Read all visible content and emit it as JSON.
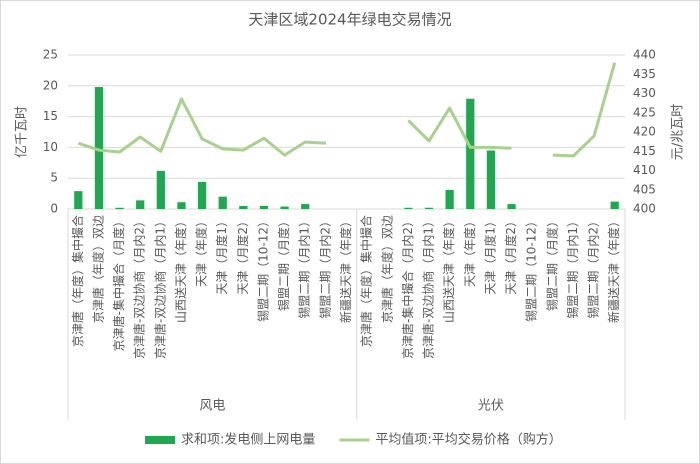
{
  "chart_data": {
    "type": "bar-line",
    "title": "天津区域2024年绿电交易情况",
    "y_label": "亿千瓦时",
    "y2_label": "元/兆瓦时",
    "groups": [
      {
        "name": "风电",
        "categories": [
          "京津唐（年度）集中撮合",
          "京津唐（年度）双边",
          "京津唐-集中撮合（月度）",
          "京津唐-双边协商（月内2）",
          "京津唐-双边协商（月内1）",
          "山西送天津（年度）",
          "天津（年度）",
          "天津（月度1）",
          "天津（月度2）",
          "锡盟二期（10-12）",
          "锡盟二期（月度）",
          "锡盟二期（月内1）",
          "锡盟二期（月内2）",
          "新疆送天津（年度）"
        ]
      },
      {
        "name": "光伏",
        "categories": [
          "京津唐（年度）集中撮合",
          "京津唐（年度）双边",
          "京津唐-集中撮合（月内2）",
          "京津唐-双边协商（月内1）",
          "山西送天津（年度）",
          "天津（年度）",
          "天津（月度1）",
          "天津（月度2）",
          "锡盟二期（10-12）",
          "锡盟二期（月度）",
          "锡盟二期（月内1）",
          "锡盟二期（月内2）",
          "新疆送天津（年度）"
        ]
      }
    ],
    "series": [
      {
        "name": "求和项:发电侧上网电量",
        "type": "bar",
        "color": "#1fa84f",
        "values": [
          2.9,
          19.8,
          0.2,
          1.4,
          6.2,
          1.1,
          4.4,
          2.0,
          0.5,
          0.5,
          0.4,
          0.8,
          null,
          null,
          null,
          null,
          0.2,
          0.2,
          3.1,
          17.9,
          9.5,
          0.8,
          null,
          null,
          null,
          null,
          1.2
        ]
      },
      {
        "name": "平均值项:平均交易价格（购方）",
        "type": "line",
        "axis": "y2",
        "color": "#a9d18e",
        "values": [
          417.1,
          415.3,
          414.8,
          418.7,
          415,
          428.6,
          418.2,
          415.6,
          415.3,
          418.4,
          414,
          417.4,
          417.1,
          null,
          null,
          null,
          423,
          417.7,
          426.2,
          416,
          416,
          415.8,
          null,
          414,
          413.8,
          419,
          438
        ]
      }
    ],
    "ylim": [
      0,
      25
    ],
    "yticks": [
      0,
      5,
      10,
      15,
      20,
      25
    ],
    "y2lim": [
      400,
      440
    ],
    "y2ticks": [
      400,
      405,
      410,
      415,
      420,
      425,
      430,
      435,
      440
    ],
    "grid": true,
    "legend": "bottom"
  }
}
